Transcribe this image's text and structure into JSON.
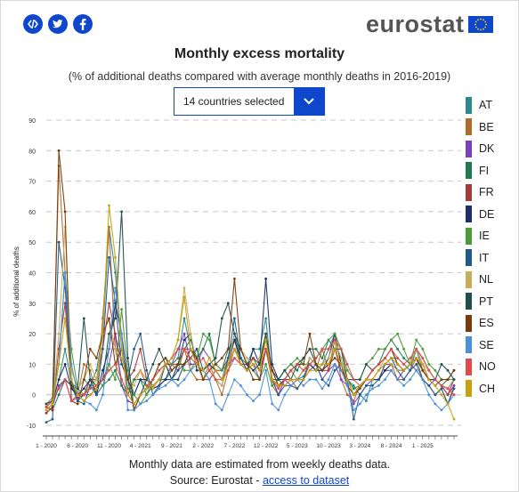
{
  "share": {
    "embed_icon": "code-icon",
    "twitter_icon": "twitter-icon",
    "facebook_icon": "facebook-icon"
  },
  "logo": {
    "text": "eurostat"
  },
  "colors": {
    "brand": "#0e47cb",
    "grid": "#c8c8c8"
  },
  "selector": {
    "value": "14 countries selected"
  },
  "footer": {
    "note": "Monthly data are estimated from weekly deaths data.",
    "source_prefix": "Source: Eurostat - ",
    "source_link": "access to dataset"
  },
  "chart_data": {
    "type": "line",
    "title": "Monthly excess mortality",
    "subtitle": "(% of additional deaths compared with average monthly deaths in 2016-2019)",
    "xlabel": "",
    "ylabel": "% of additional deaths",
    "ylim": [
      -10,
      90
    ],
    "yticks": [
      -10,
      0,
      10,
      20,
      30,
      40,
      50,
      60,
      70,
      80,
      90
    ],
    "grid": true,
    "legend_position": "right",
    "x": [
      "2020-01",
      "2020-02",
      "2020-03",
      "2020-04",
      "2020-05",
      "2020-06",
      "2020-07",
      "2020-08",
      "2020-09",
      "2020-10",
      "2020-11",
      "2020-12",
      "2021-01",
      "2021-02",
      "2021-03",
      "2021-04",
      "2021-05",
      "2021-06",
      "2021-07",
      "2021-08",
      "2021-09",
      "2021-10",
      "2021-11",
      "2021-12",
      "2022-01",
      "2022-02",
      "2022-03",
      "2022-04",
      "2022-05",
      "2022-06",
      "2022-07",
      "2022-08",
      "2022-09",
      "2022-10",
      "2022-11",
      "2022-12",
      "2023-01",
      "2023-02",
      "2023-03",
      "2023-04",
      "2023-05",
      "2023-06",
      "2023-07",
      "2023-08",
      "2023-09",
      "2023-10",
      "2023-11",
      "2023-12",
      "2024-01",
      "2024-02",
      "2024-03",
      "2024-04",
      "2024-05",
      "2024-06",
      "2024-07",
      "2024-08",
      "2024-09",
      "2024-10",
      "2024-11",
      "2024-12",
      "2025-01",
      "2025-02",
      "2025-03",
      "2025-04",
      "2025-05",
      "2025-06"
    ],
    "xtick_labels": [
      "1 - 2020",
      "6 - 2020",
      "11 - 2020",
      "4 - 2021",
      "9 - 2021",
      "2 - 2022",
      "7 - 2022",
      "12 - 2022",
      "5 - 2023",
      "10 - 2023",
      "3 - 2024",
      "8 - 2024",
      "1 - 2025"
    ],
    "series": [
      {
        "name": "AT",
        "color": "#2a8a8f",
        "values": [
          -5,
          -3,
          5,
          15,
          4,
          2,
          5,
          3,
          8,
          20,
          55,
          40,
          15,
          2,
          0,
          5,
          3,
          5,
          8,
          10,
          10,
          12,
          25,
          15,
          10,
          5,
          10,
          8,
          5,
          12,
          20,
          12,
          10,
          15,
          15,
          25,
          5,
          5,
          3,
          5,
          5,
          6,
          10,
          8,
          10,
          15,
          20,
          10,
          5,
          3,
          0,
          -2,
          5,
          8,
          10,
          12,
          12,
          10,
          8,
          15,
          8,
          5,
          5,
          3,
          2,
          5
        ]
      },
      {
        "name": "BE",
        "color": "#b06b2a",
        "values": [
          -3,
          -2,
          75,
          40,
          2,
          0,
          10,
          8,
          0,
          25,
          55,
          15,
          5,
          0,
          5,
          8,
          3,
          2,
          3,
          5,
          10,
          8,
          15,
          8,
          5,
          5,
          10,
          5,
          0,
          8,
          15,
          10,
          8,
          12,
          10,
          20,
          3,
          0,
          5,
          5,
          2,
          5,
          10,
          8,
          15,
          8,
          18,
          5,
          0,
          -2,
          3,
          5,
          5,
          5,
          8,
          10,
          5,
          5,
          8,
          12,
          5,
          3,
          0,
          2,
          -3,
          3
        ]
      },
      {
        "name": "DK",
        "color": "#7a3fbf",
        "values": [
          -6,
          -4,
          3,
          5,
          -2,
          -1,
          0,
          0,
          2,
          5,
          10,
          20,
          3,
          -2,
          -3,
          0,
          2,
          3,
          5,
          5,
          10,
          15,
          20,
          10,
          10,
          15,
          12,
          8,
          5,
          10,
          12,
          10,
          8,
          10,
          5,
          15,
          5,
          0,
          5,
          3,
          5,
          5,
          8,
          10,
          5,
          8,
          10,
          5,
          3,
          -3,
          0,
          3,
          5,
          5,
          8,
          8,
          5,
          8,
          10,
          8,
          5,
          3,
          5,
          3,
          0,
          3
        ]
      },
      {
        "name": "FI",
        "color": "#1f7a4e",
        "values": [
          -4,
          -5,
          0,
          5,
          3,
          -2,
          0,
          5,
          0,
          3,
          5,
          8,
          3,
          0,
          5,
          5,
          0,
          3,
          5,
          5,
          8,
          10,
          15,
          18,
          12,
          15,
          20,
          10,
          8,
          15,
          18,
          15,
          10,
          12,
          8,
          20,
          5,
          5,
          8,
          10,
          8,
          12,
          15,
          15,
          12,
          18,
          15,
          10,
          5,
          2,
          3,
          5,
          8,
          10,
          15,
          18,
          15,
          12,
          10,
          15,
          12,
          8,
          5,
          3,
          5,
          8
        ]
      },
      {
        "name": "FR",
        "color": "#a83a3a",
        "values": [
          -6,
          -4,
          15,
          30,
          3,
          0,
          0,
          5,
          5,
          15,
          30,
          20,
          10,
          5,
          8,
          15,
          5,
          3,
          5,
          10,
          10,
          10,
          15,
          15,
          10,
          5,
          5,
          8,
          8,
          12,
          18,
          10,
          10,
          12,
          10,
          20,
          8,
          3,
          5,
          5,
          5,
          8,
          10,
          8,
          8,
          8,
          15,
          8,
          5,
          0,
          3,
          5,
          5,
          5,
          10,
          10,
          8,
          8,
          10,
          15,
          10,
          5,
          5,
          3,
          0,
          5
        ]
      },
      {
        "name": "DE",
        "color": "#1c2f6e",
        "values": [
          -4,
          -2,
          5,
          10,
          2,
          0,
          2,
          5,
          0,
          8,
          15,
          30,
          20,
          5,
          0,
          5,
          5,
          2,
          3,
          5,
          5,
          10,
          18,
          20,
          8,
          8,
          10,
          8,
          5,
          10,
          18,
          12,
          8,
          15,
          10,
          38,
          10,
          5,
          5,
          8,
          5,
          8,
          10,
          8,
          8,
          12,
          20,
          10,
          5,
          0,
          3,
          5,
          5,
          5,
          8,
          10,
          8,
          8,
          10,
          12,
          8,
          5,
          5,
          3,
          2,
          5
        ]
      },
      {
        "name": "IE",
        "color": "#4a9b3a",
        "values": [
          -3,
          -1,
          10,
          40,
          15,
          2,
          0,
          3,
          5,
          3,
          10,
          5,
          28,
          8,
          0,
          -3,
          0,
          5,
          10,
          12,
          10,
          12,
          8,
          8,
          12,
          20,
          18,
          10,
          8,
          10,
          15,
          12,
          10,
          8,
          5,
          10,
          3,
          5,
          8,
          10,
          12,
          10,
          10,
          12,
          15,
          18,
          20,
          15,
          8,
          5,
          5,
          10,
          12,
          15,
          15,
          18,
          20,
          15,
          10,
          18,
          15,
          10,
          8,
          5,
          5,
          5
        ]
      },
      {
        "name": "IT",
        "color": "#1f5a8c",
        "values": [
          -9,
          -8,
          50,
          35,
          5,
          -2,
          -3,
          3,
          0,
          15,
          45,
          30,
          10,
          5,
          15,
          20,
          8,
          0,
          3,
          10,
          5,
          8,
          10,
          15,
          12,
          5,
          10,
          5,
          3,
          12,
          25,
          12,
          8,
          10,
          8,
          15,
          5,
          0,
          3,
          3,
          2,
          5,
          12,
          10,
          5,
          3,
          8,
          10,
          5,
          -8,
          0,
          3,
          3,
          5,
          10,
          12,
          8,
          5,
          8,
          10,
          5,
          3,
          0,
          2,
          -3,
          2
        ]
      },
      {
        "name": "NL",
        "color": "#c9ac5a",
        "values": [
          -5,
          -3,
          20,
          55,
          8,
          2,
          5,
          10,
          5,
          20,
          25,
          15,
          12,
          5,
          3,
          8,
          5,
          2,
          5,
          10,
          12,
          18,
          35,
          20,
          10,
          5,
          10,
          5,
          3,
          10,
          20,
          15,
          12,
          10,
          12,
          20,
          5,
          3,
          5,
          8,
          5,
          8,
          12,
          10,
          10,
          12,
          18,
          12,
          5,
          0,
          3,
          5,
          5,
          8,
          12,
          10,
          8,
          8,
          10,
          15,
          10,
          8,
          5,
          3,
          2,
          5
        ]
      },
      {
        "name": "PT",
        "color": "#1f4f4a",
        "values": [
          -3,
          -2,
          2,
          5,
          3,
          2,
          25,
          5,
          3,
          5,
          20,
          25,
          60,
          12,
          -5,
          0,
          5,
          10,
          15,
          10,
          5,
          5,
          10,
          12,
          15,
          8,
          10,
          12,
          25,
          30,
          20,
          15,
          10,
          8,
          10,
          20,
          8,
          5,
          8,
          5,
          10,
          12,
          15,
          10,
          8,
          10,
          15,
          15,
          5,
          5,
          5,
          10,
          8,
          10,
          12,
          15,
          10,
          8,
          10,
          12,
          8,
          5,
          5,
          10,
          8,
          5
        ]
      },
      {
        "name": "ES",
        "color": "#7a3a0a",
        "values": [
          -4,
          -5,
          80,
          60,
          -2,
          -3,
          5,
          15,
          12,
          20,
          25,
          10,
          15,
          5,
          -5,
          0,
          2,
          5,
          10,
          12,
          8,
          10,
          10,
          15,
          12,
          5,
          8,
          10,
          12,
          15,
          38,
          15,
          10,
          5,
          5,
          15,
          8,
          3,
          5,
          8,
          10,
          10,
          20,
          10,
          8,
          10,
          12,
          10,
          3,
          0,
          2,
          5,
          8,
          10,
          12,
          15,
          10,
          8,
          10,
          12,
          8,
          5,
          3,
          5,
          5,
          8
        ]
      },
      {
        "name": "SE",
        "color": "#4a90d9",
        "values": [
          -5,
          -3,
          10,
          40,
          10,
          0,
          -2,
          -3,
          -5,
          0,
          15,
          35,
          20,
          -5,
          -5,
          -3,
          -2,
          0,
          2,
          3,
          5,
          3,
          5,
          8,
          10,
          8,
          5,
          -3,
          -5,
          0,
          5,
          3,
          0,
          -2,
          0,
          8,
          -3,
          -5,
          0,
          3,
          5,
          3,
          5,
          5,
          2,
          5,
          10,
          8,
          3,
          -5,
          -3,
          0,
          2,
          3,
          5,
          8,
          5,
          3,
          5,
          8,
          5,
          0,
          -3,
          -5,
          -3,
          0
        ]
      },
      {
        "name": "NO",
        "color": "#e04a4a",
        "values": [
          -4,
          -2,
          2,
          5,
          -2,
          0,
          0,
          2,
          3,
          5,
          8,
          10,
          5,
          0,
          -3,
          0,
          2,
          5,
          8,
          10,
          12,
          15,
          15,
          12,
          10,
          12,
          8,
          5,
          5,
          8,
          12,
          10,
          8,
          10,
          8,
          15,
          5,
          2,
          5,
          8,
          10,
          8,
          10,
          12,
          15,
          15,
          18,
          15,
          10,
          5,
          3,
          5,
          8,
          10,
          12,
          15,
          12,
          10,
          12,
          15,
          12,
          8,
          5,
          3,
          2,
          0
        ]
      },
      {
        "name": "CH",
        "color": "#c8a010",
        "values": [
          -5,
          -3,
          10,
          25,
          5,
          0,
          -2,
          0,
          2,
          20,
          62,
          45,
          15,
          0,
          -3,
          0,
          2,
          3,
          5,
          10,
          12,
          18,
          32,
          15,
          10,
          8,
          12,
          8,
          5,
          10,
          15,
          10,
          8,
          10,
          8,
          18,
          5,
          3,
          3,
          5,
          5,
          5,
          8,
          8,
          10,
          10,
          15,
          10,
          5,
          0,
          3,
          5,
          5,
          8,
          10,
          12,
          10,
          8,
          10,
          12,
          10,
          5,
          3,
          0,
          -3,
          -8
        ]
      }
    ]
  }
}
